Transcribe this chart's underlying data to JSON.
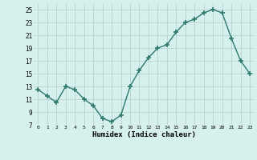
{
  "x": [
    0,
    1,
    2,
    3,
    4,
    5,
    6,
    7,
    8,
    9,
    10,
    11,
    12,
    13,
    14,
    15,
    16,
    17,
    18,
    19,
    20,
    21,
    22,
    23
  ],
  "y": [
    12.5,
    11.5,
    10.5,
    13.0,
    12.5,
    11.0,
    10.0,
    8.0,
    7.5,
    8.5,
    13.0,
    15.5,
    17.5,
    19.0,
    19.5,
    21.5,
    23.0,
    23.5,
    24.5,
    25.0,
    24.5,
    20.5,
    17.0,
    15.0
  ],
  "line_color": "#2d7a6b",
  "marker": "+",
  "marker_size": 4,
  "marker_lw": 1.2,
  "line_width": 1.0,
  "bg_color": "#d6f0ee",
  "grid_color": "#b8d4d0",
  "xlabel": "Humidex (Indice chaleur)",
  "xlim": [
    -0.5,
    23.5
  ],
  "ylim": [
    7,
    26
  ],
  "yticks": [
    7,
    9,
    11,
    13,
    15,
    17,
    19,
    21,
    23,
    25
  ],
  "xticks": [
    0,
    1,
    2,
    3,
    4,
    5,
    6,
    7,
    8,
    9,
    10,
    11,
    12,
    13,
    14,
    15,
    16,
    17,
    18,
    19,
    20,
    21,
    22,
    23
  ]
}
